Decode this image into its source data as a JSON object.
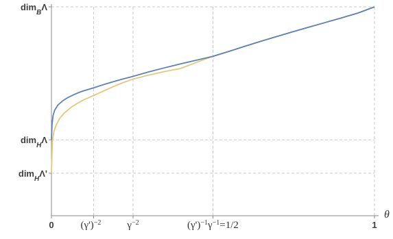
{
  "chart_data": {
    "type": "line",
    "title": "",
    "xlabel": "θ",
    "ylabel": "",
    "xlim": [
      0,
      1
    ],
    "ylim": [
      0,
      1
    ],
    "grid": "dashed",
    "x_ticks": [
      {
        "value": 0,
        "label": "0"
      },
      {
        "value": 0.1305,
        "label": "(γ')⁻² γ⁻²"
      },
      {
        "value": 0.2527,
        "label": "γ⁻²"
      },
      {
        "value": 0.5,
        "label": "(γ')⁻¹γ⁻¹=1/2"
      },
      {
        "value": 1,
        "label": "1"
      }
    ],
    "y_ticks": [
      {
        "value": 0.2037,
        "label": "dim_HΛ'"
      },
      {
        "value": 0.3633,
        "label": "dim_HΛ"
      },
      {
        "value": 1.0,
        "label": "dim_BΛ"
      }
    ],
    "series": [
      {
        "name": "",
        "color": "#5b82b8",
        "x": [
          0,
          0.002,
          0.005,
          0.01,
          0.02,
          0.035,
          0.05,
          0.07,
          0.09,
          0.11,
          0.13,
          0.16,
          0.19,
          0.22,
          0.25,
          0.3,
          0.35,
          0.4,
          0.45,
          0.5,
          0.55,
          0.6,
          0.65,
          0.7,
          0.75,
          0.8,
          0.85,
          0.9,
          0.95,
          1.0
        ],
        "y": [
          0.363,
          0.44,
          0.48,
          0.505,
          0.53,
          0.55,
          0.565,
          0.58,
          0.593,
          0.603,
          0.612,
          0.627,
          0.641,
          0.654,
          0.666,
          0.688,
          0.708,
          0.727,
          0.745,
          0.763,
          0.787,
          0.812,
          0.836,
          0.859,
          0.882,
          0.904,
          0.926,
          0.948,
          0.971,
          1.0
        ]
      },
      {
        "name": "",
        "color": "#e6c77a",
        "x": [
          0,
          0.003,
          0.008,
          0.015,
          0.025,
          0.04,
          0.06,
          0.08,
          0.1,
          0.13,
          0.16,
          0.19,
          0.22,
          0.25,
          0.3,
          0.35,
          0.4,
          0.45,
          0.5,
          0.55,
          0.6,
          0.65,
          0.7,
          0.75,
          0.8,
          0.85,
          0.9,
          0.95,
          1.0
        ],
        "y": [
          0.204,
          0.36,
          0.405,
          0.435,
          0.465,
          0.492,
          0.518,
          0.538,
          0.555,
          0.575,
          0.596,
          0.617,
          0.636,
          0.653,
          0.673,
          0.69,
          0.705,
          0.735,
          0.763,
          0.787,
          0.812,
          0.836,
          0.859,
          0.882,
          0.904,
          0.926,
          0.948,
          0.971,
          1.0
        ]
      }
    ]
  }
}
